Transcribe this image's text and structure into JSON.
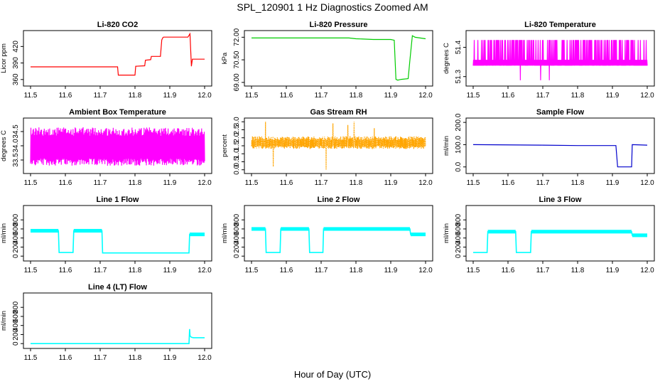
{
  "figure": {
    "title": "SPL_120901  1 Hz Diagnostics Zoomed AM",
    "xlabel": "Hour of Day (UTC)"
  },
  "chart_data": [
    {
      "type": "line",
      "title": "Li-820 CO2",
      "ylabel": "Licor ppm",
      "color": "#ff0000",
      "xlim": [
        11.5,
        12.0
      ],
      "xticks": [
        11.5,
        11.6,
        11.7,
        11.8,
        11.9,
        12.0
      ],
      "ylim": [
        352,
        445
      ],
      "yticks": [
        360,
        390,
        420
      ],
      "series": [
        {
          "x": [
            11.5,
            11.75,
            11.752,
            11.8,
            11.802,
            11.828,
            11.83,
            11.845,
            11.847,
            11.873,
            11.877,
            11.88,
            11.882,
            11.952,
            11.958,
            11.962,
            11.965,
            12.0
          ],
          "y": [
            383,
            383,
            368,
            368,
            384,
            385,
            395,
            396,
            402,
            402,
            432,
            436,
            437,
            437,
            443,
            384,
            397,
            397
          ]
        }
      ]
    },
    {
      "type": "line",
      "title": "Li-820 Pressure",
      "ylabel": "kPa",
      "color": "#00cc00",
      "xlim": [
        11.5,
        12.0
      ],
      "xticks": [
        11.5,
        11.6,
        11.7,
        11.8,
        11.9,
        12.0
      ],
      "ylim": [
        68.9,
        72.3
      ],
      "yticks": [
        69.0,
        70.5,
        72.0
      ],
      "series": [
        {
          "x": [
            11.5,
            11.6,
            11.7,
            11.75,
            11.78,
            11.8,
            11.85,
            11.9,
            11.91,
            11.915,
            11.92,
            11.93,
            11.95,
            11.955,
            11.962,
            11.97,
            12.0
          ],
          "y": [
            71.95,
            71.95,
            71.95,
            71.95,
            71.95,
            71.9,
            71.85,
            71.85,
            71.8,
            69.2,
            69.15,
            69.2,
            69.25,
            70.5,
            72.1,
            72.0,
            71.9
          ]
        }
      ]
    },
    {
      "type": "line",
      "title": "Li-820 Temperature",
      "ylabel": "degrees C",
      "color": "#ff00ff",
      "xlim": [
        11.5,
        12.0
      ],
      "xticks": [
        11.5,
        11.6,
        11.7,
        11.8,
        11.9,
        12.0
      ],
      "ylim": [
        51.33,
        51.4
      ],
      "yticks": [
        51.34,
        51.38
      ],
      "series": [
        {
          "name": "",
          "x": [
            11.5,
            12.0
          ],
          "y": [
            51.365,
            51.365
          ]
        }
      ]
    },
    {
      "type": "line",
      "title": "Ambient Box Temperature",
      "ylabel": "degrees C",
      "color": "#ff00ff",
      "xlim": [
        11.5,
        12.0
      ],
      "xticks": [
        11.5,
        11.6,
        11.7,
        11.8,
        11.9,
        12.0
      ],
      "ylim": [
        33.1,
        34.9
      ],
      "yticks": [
        33.5,
        34.0,
        34.5
      ],
      "series": [
        {
          "name": "",
          "x": [
            11.5,
            12.0
          ],
          "y": [
            33.95,
            33.95
          ]
        }
      ]
    },
    {
      "type": "line",
      "title": "Gas Stream RH",
      "ylabel": "percent",
      "color": "#ffa500",
      "xlim": [
        11.5,
        12.0
      ],
      "xticks": [
        11.5,
        11.6,
        11.7,
        11.8,
        11.9,
        12.0
      ],
      "ylim": [
        -0.1,
        3.1
      ],
      "yticks": [
        0.0,
        0.5,
        1.0,
        1.5,
        2.0,
        2.5,
        3.0
      ],
      "series": [
        {
          "name": "",
          "x": [
            11.5,
            12.0
          ],
          "y": [
            1.7,
            1.7
          ]
        }
      ]
    },
    {
      "type": "line",
      "title": "Sample Flow",
      "ylabel": "ml/min",
      "color": "#0000cc",
      "xlim": [
        11.5,
        12.0
      ],
      "xticks": [
        11.5,
        11.6,
        11.7,
        11.8,
        11.9,
        12.0
      ],
      "ylim": [
        -20,
        210
      ],
      "yticks": [
        0,
        100,
        200
      ],
      "series": [
        {
          "x": [
            11.5,
            11.7,
            11.8,
            11.91,
            11.915,
            11.955,
            11.957,
            12.0
          ],
          "y": [
            100,
            98,
            96,
            96,
            0,
            0,
            100,
            98
          ]
        }
      ]
    },
    {
      "type": "line",
      "title": "Line 1 Flow",
      "ylabel": "ml/min",
      "color": "#00ffff",
      "xlim": [
        11.5,
        12.0
      ],
      "xticks": [
        11.5,
        11.6,
        11.7,
        11.8,
        11.9,
        12.0
      ],
      "ylim": [
        -60,
        1070
      ],
      "yticks": [
        0,
        200,
        400,
        600,
        800
      ],
      "series": [
        {
          "x": [
            11.5,
            11.58,
            11.582,
            11.622,
            11.624,
            11.705,
            11.707,
            11.955,
            11.957,
            12.0
          ],
          "y": [
            560,
            560,
            80,
            80,
            560,
            560,
            70,
            70,
            480,
            480
          ]
        }
      ]
    },
    {
      "type": "line",
      "title": "Line 2 Flow",
      "ylabel": "ml/min",
      "color": "#00ffff",
      "xlim": [
        11.5,
        12.0
      ],
      "xticks": [
        11.5,
        11.6,
        11.7,
        11.8,
        11.9,
        12.0
      ],
      "ylim": [
        -60,
        1070
      ],
      "yticks": [
        0,
        200,
        400,
        600,
        800
      ],
      "series": [
        {
          "x": [
            11.5,
            11.54,
            11.542,
            11.582,
            11.584,
            11.665,
            11.667,
            11.705,
            11.707,
            11.955,
            11.957,
            12.0
          ],
          "y": [
            600,
            600,
            80,
            80,
            600,
            600,
            80,
            80,
            600,
            600,
            480,
            480
          ]
        }
      ]
    },
    {
      "type": "line",
      "title": "Line 3 Flow",
      "ylabel": "ml/min",
      "color": "#00ffff",
      "xlim": [
        11.5,
        12.0
      ],
      "xticks": [
        11.5,
        11.6,
        11.7,
        11.8,
        11.9,
        12.0
      ],
      "ylim": [
        -60,
        1070
      ],
      "yticks": [
        0,
        200,
        400,
        600,
        800
      ],
      "series": [
        {
          "x": [
            11.5,
            11.54,
            11.542,
            11.622,
            11.624,
            11.665,
            11.667,
            11.955,
            11.957,
            12.0
          ],
          "y": [
            80,
            80,
            540,
            540,
            80,
            80,
            540,
            540,
            460,
            460
          ]
        }
      ]
    },
    {
      "type": "line",
      "title": "Line 4 (LT) Flow",
      "ylabel": "ml/min",
      "color": "#00ffff",
      "xlim": [
        11.5,
        12.0
      ],
      "xticks": [
        11.5,
        11.6,
        11.7,
        11.8,
        11.9,
        12.0
      ],
      "ylim": [
        -60,
        1070
      ],
      "yticks": [
        0,
        200,
        400,
        600,
        800
      ],
      "series": [
        {
          "x": [
            11.5,
            11.955,
            11.957,
            11.958,
            11.962,
            11.968,
            12.0
          ],
          "y": [
            0,
            0,
            320,
            170,
            140,
            130,
            130
          ]
        }
      ]
    }
  ]
}
